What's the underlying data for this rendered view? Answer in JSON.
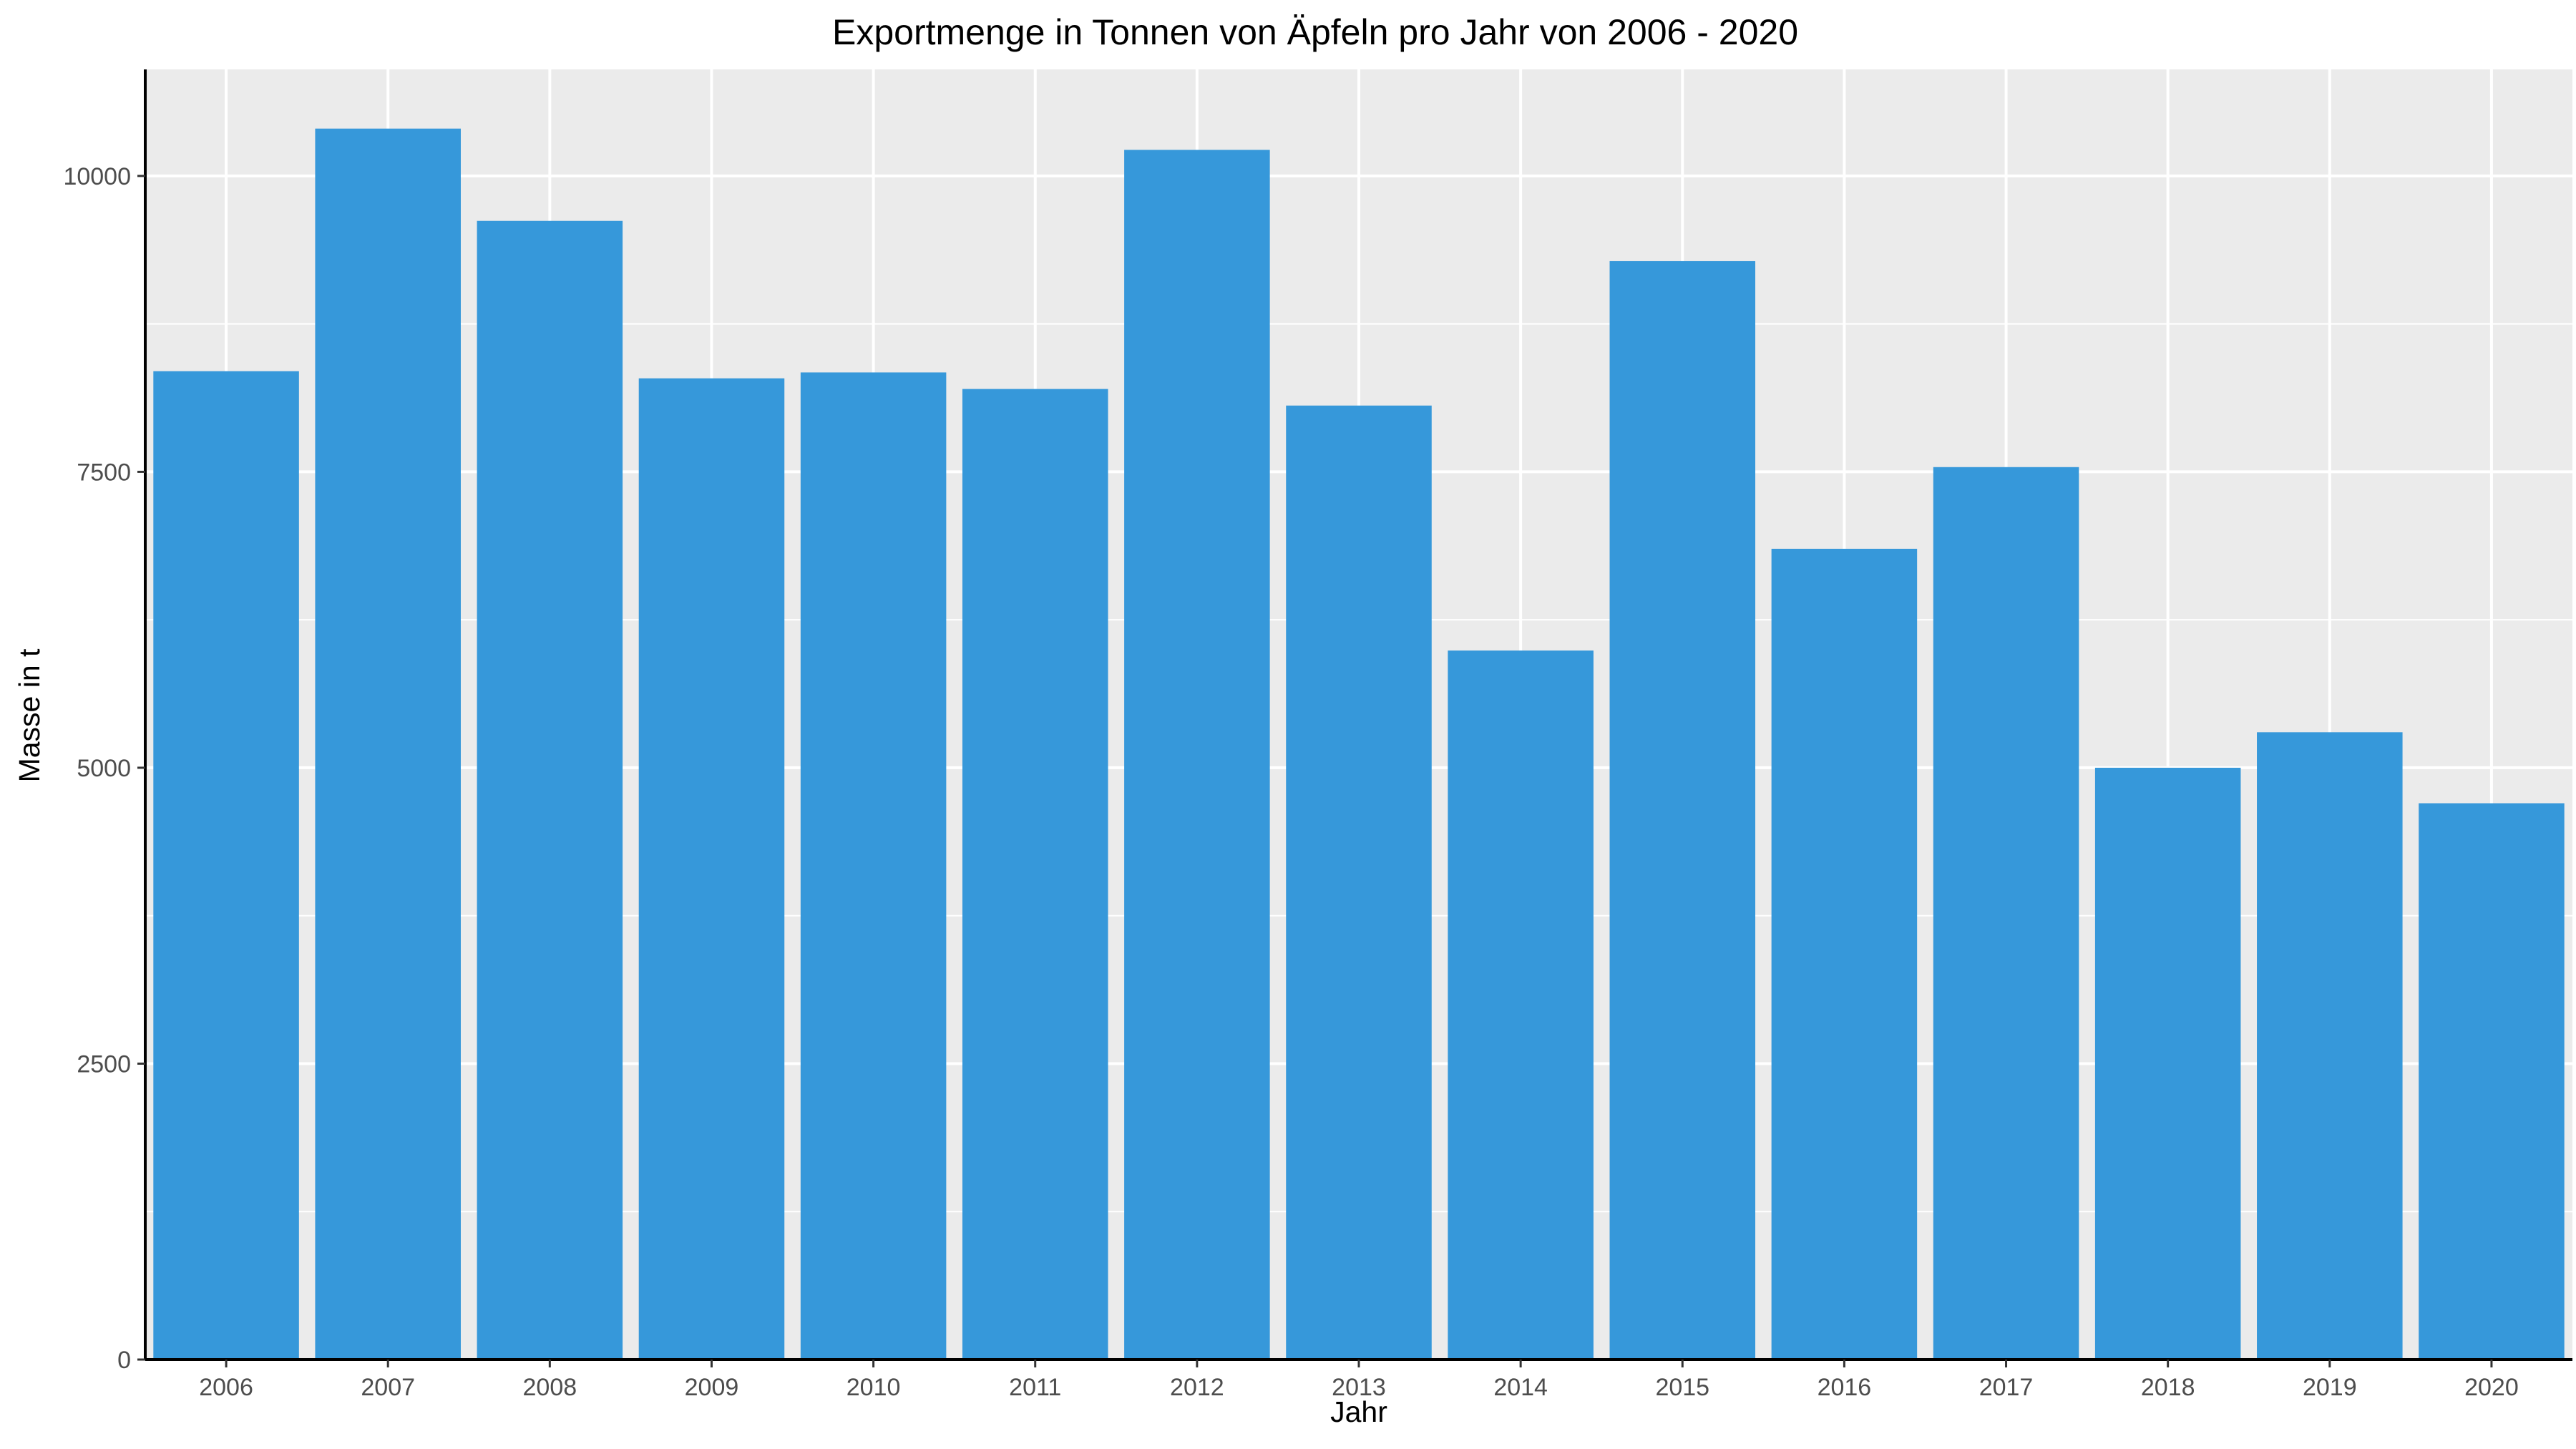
{
  "chart_data": {
    "type": "bar",
    "title": "Exportmenge in Tonnen von Äpfeln pro Jahr von 2006 - 2020",
    "xlabel": "Jahr",
    "ylabel": "Masse in t",
    "categories": [
      "2006",
      "2007",
      "2008",
      "2009",
      "2010",
      "2011",
      "2012",
      "2013",
      "2014",
      "2015",
      "2016",
      "2017",
      "2018",
      "2019",
      "2020"
    ],
    "values": [
      8350,
      10400,
      9620,
      8290,
      8340,
      8200,
      10220,
      8060,
      5990,
      9280,
      6850,
      7540,
      5000,
      5300,
      4700
    ],
    "ylim": [
      0,
      10900
    ],
    "yticks": [
      0,
      2500,
      5000,
      7500,
      10000
    ],
    "ytick_labels": [
      "0",
      "2500",
      "5000",
      "7500",
      "10000"
    ],
    "grid": true,
    "legend": "none",
    "colors": {
      "bar": "#3698DA",
      "panel": "#EBEBEB",
      "grid": "#FFFFFF",
      "axis": "#000000",
      "tick_text": "#4D4D4D"
    }
  }
}
